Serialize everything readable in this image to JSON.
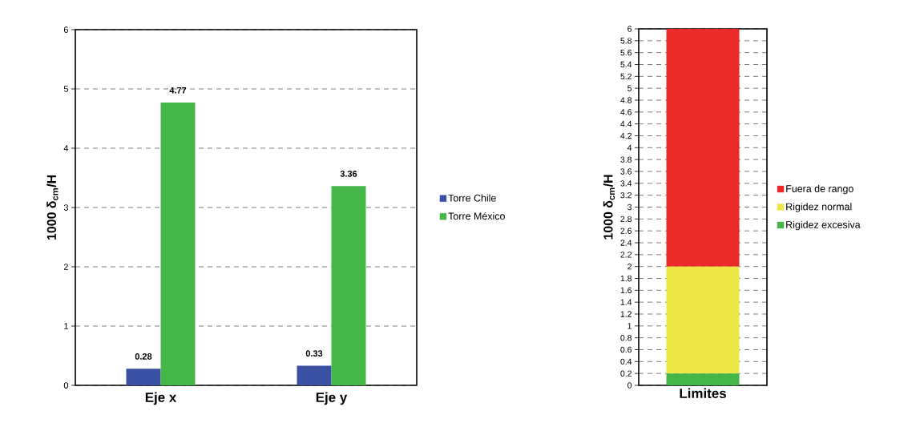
{
  "chart_data": [
    {
      "type": "bar",
      "ylabel": "1000 δ$_{cm}$/H",
      "categories": [
        "Eje x",
        "Eje y"
      ],
      "series": [
        {
          "name": "Torre Chile",
          "color": "#3a51a3",
          "values": [
            0.28,
            0.33
          ]
        },
        {
          "name": "Torre México",
          "color": "#46b649",
          "values": [
            4.77,
            3.36
          ]
        }
      ],
      "ylim": [
        0,
        6
      ],
      "yticks": [
        0,
        1,
        2,
        3,
        4,
        5,
        6
      ],
      "grid": "y",
      "legend": "right",
      "data_labels": true
    },
    {
      "type": "bar",
      "stacked": true,
      "ylabel": "1000 δ$_{cm}$/H",
      "categories": [
        "Limites"
      ],
      "series": [
        {
          "name": "Rigidez excesiva",
          "color": "#45b549",
          "values": [
            0.2
          ]
        },
        {
          "name": "Rigidez normal",
          "color": "#ede848",
          "values": [
            1.8
          ]
        },
        {
          "name": "Fuera de rango",
          "color": "#ea2a29",
          "values": [
            4
          ]
        }
      ],
      "ylim": [
        0,
        6
      ],
      "yticks": [
        0,
        0.2,
        0.4,
        0.6,
        0.8,
        1,
        1.2,
        1.4,
        1.6,
        1.8,
        2,
        2.2,
        2.4,
        2.6,
        2.8,
        3,
        3.2,
        3.4,
        3.6,
        3.8,
        4,
        4.2,
        4.4,
        4.6,
        4.8,
        5,
        5.2,
        5.4,
        5.6,
        5.8,
        6
      ],
      "grid": "y",
      "legend": "right"
    }
  ]
}
